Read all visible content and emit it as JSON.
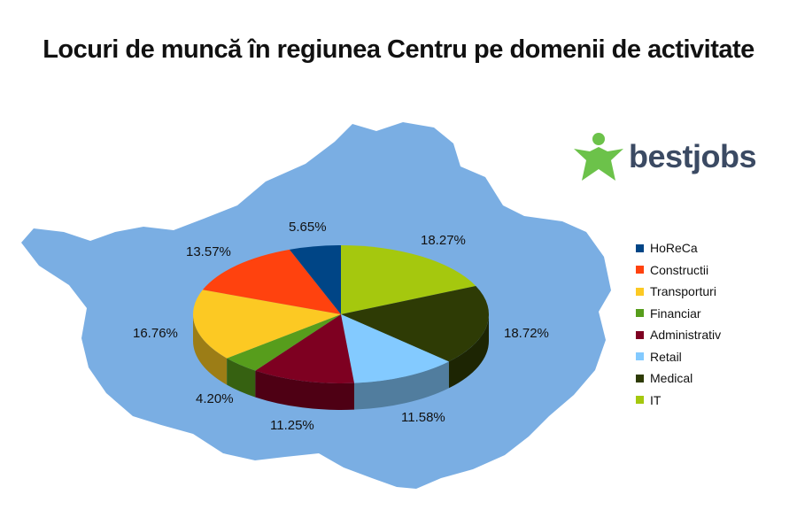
{
  "title": "Locuri de muncă în regiunea Centru pe domenii de activitate",
  "brand": {
    "name": "bestjobs",
    "logo_icon": "person-star-icon",
    "icon_color": "#6cc24a",
    "text_color": "#3b4a63"
  },
  "map_color": "#7aaee3",
  "chart_data": {
    "type": "pie",
    "title": "Locuri de muncă în regiunea Centru pe domenii de activitate",
    "legend_position": "right",
    "slices": [
      {
        "label": "IT",
        "value": 18.27,
        "value_label": "18.27%",
        "color": "#a5c80e"
      },
      {
        "label": "Medical",
        "value": 18.72,
        "value_label": "18.72%",
        "color": "#2e3b05"
      },
      {
        "label": "Retail",
        "value": 11.58,
        "value_label": "11.58%",
        "color": "#83caff"
      },
      {
        "label": "Administrativ",
        "value": 11.25,
        "value_label": "11.25%",
        "color": "#7e0021"
      },
      {
        "label": "Financiar",
        "value": 4.2,
        "value_label": "4.20%",
        "color": "#579d1c"
      },
      {
        "label": "Transporturi",
        "value": 16.76,
        "value_label": "16.76%",
        "color": "#fcc923"
      },
      {
        "label": "Constructii",
        "value": 13.57,
        "value_label": "13.57%",
        "color": "#ff420e"
      },
      {
        "label": "HoReCa",
        "value": 5.65,
        "value_label": "5.65%",
        "color": "#004586"
      }
    ],
    "legend": [
      "HoReCa",
      "Constructii",
      "Transporturi",
      "Financiar",
      "Administrativ",
      "Retail",
      "Medical",
      "IT"
    ]
  }
}
